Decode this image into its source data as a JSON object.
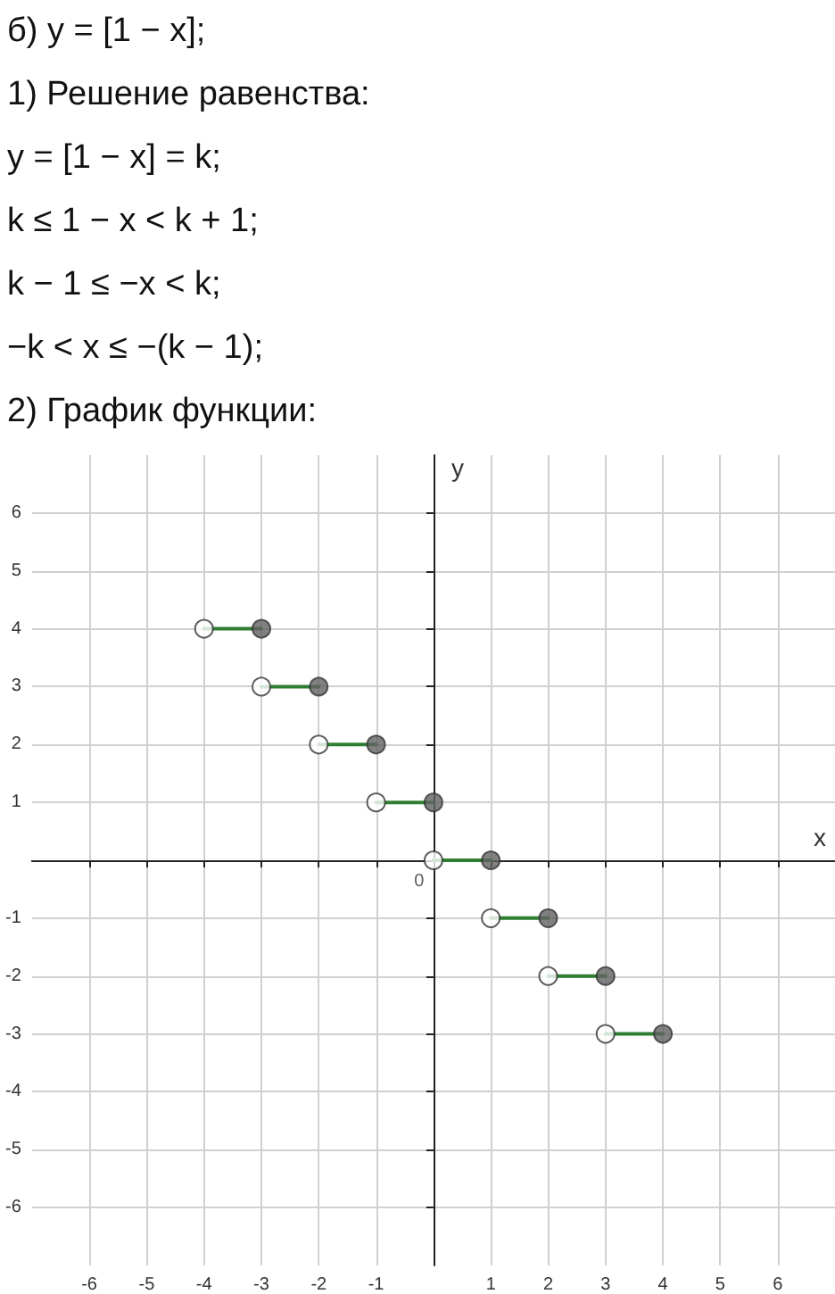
{
  "chart_data": {
    "type": "line",
    "title": "б) y = [1 − x];",
    "annotations": [
      "1) Решение равенства:",
      "y = [1 − x] = k;",
      "k ≤ 1 − x < k + 1;",
      "k − 1 ≤ −x < k;",
      "−k < x ≤ −(k − 1);",
      "2) График функции:",
      {
        "text": "0",
        "x": 0,
        "y": 0
      }
    ],
    "xlabel": "x",
    "ylabel": "y",
    "xlim": [
      -7,
      7
    ],
    "ylim": [
      -7,
      7
    ],
    "xticks": [
      -6,
      -5,
      -4,
      -3,
      -2,
      -1,
      1,
      2,
      3,
      4,
      5,
      6
    ],
    "yticks": [
      -6,
      -5,
      -4,
      -3,
      -2,
      -1,
      1,
      2,
      3,
      4,
      5,
      6
    ],
    "grid": true,
    "line_style": "solid",
    "series": [
      {
        "color": "#2e7d32",
        "marker": "none",
        "x": [
          -4,
          -3
        ],
        "values": [
          4,
          4
        ]
      },
      {
        "color": "#2e7d32",
        "marker": "none",
        "x": [
          -3,
          -2
        ],
        "values": [
          3,
          3
        ]
      },
      {
        "color": "#2e7d32",
        "marker": "none",
        "x": [
          -2,
          -1
        ],
        "values": [
          2,
          2
        ]
      },
      {
        "color": "#2e7d32",
        "marker": "none",
        "x": [
          -1,
          0
        ],
        "values": [
          1,
          1
        ]
      },
      {
        "color": "#2e7d32",
        "marker": "none",
        "x": [
          0,
          1
        ],
        "values": [
          0,
          0
        ]
      },
      {
        "color": "#2e7d32",
        "marker": "none",
        "x": [
          1,
          2
        ],
        "values": [
          -1,
          -1
        ]
      },
      {
        "color": "#2e7d32",
        "marker": "none",
        "x": [
          2,
          3
        ],
        "values": [
          -2,
          -2
        ]
      },
      {
        "color": "#2e7d32",
        "marker": "none",
        "x": [
          3,
          4
        ],
        "values": [
          -3,
          -3
        ]
      },
      {
        "type": "scatter",
        "marker": "circle",
        "color": "#ffffff",
        "x": [
          -4,
          -3,
          -2,
          -1,
          0,
          1,
          2,
          3
        ],
        "values": [
          4,
          3,
          2,
          1,
          0,
          -1,
          -2,
          -3
        ]
      },
      {
        "type": "scatter",
        "marker": "circle",
        "color": "#616161",
        "x": [
          -3,
          -2,
          -1,
          0,
          1,
          2,
          3,
          4
        ],
        "values": [
          4,
          3,
          2,
          1,
          0,
          -1,
          -2,
          -3
        ]
      }
    ]
  }
}
